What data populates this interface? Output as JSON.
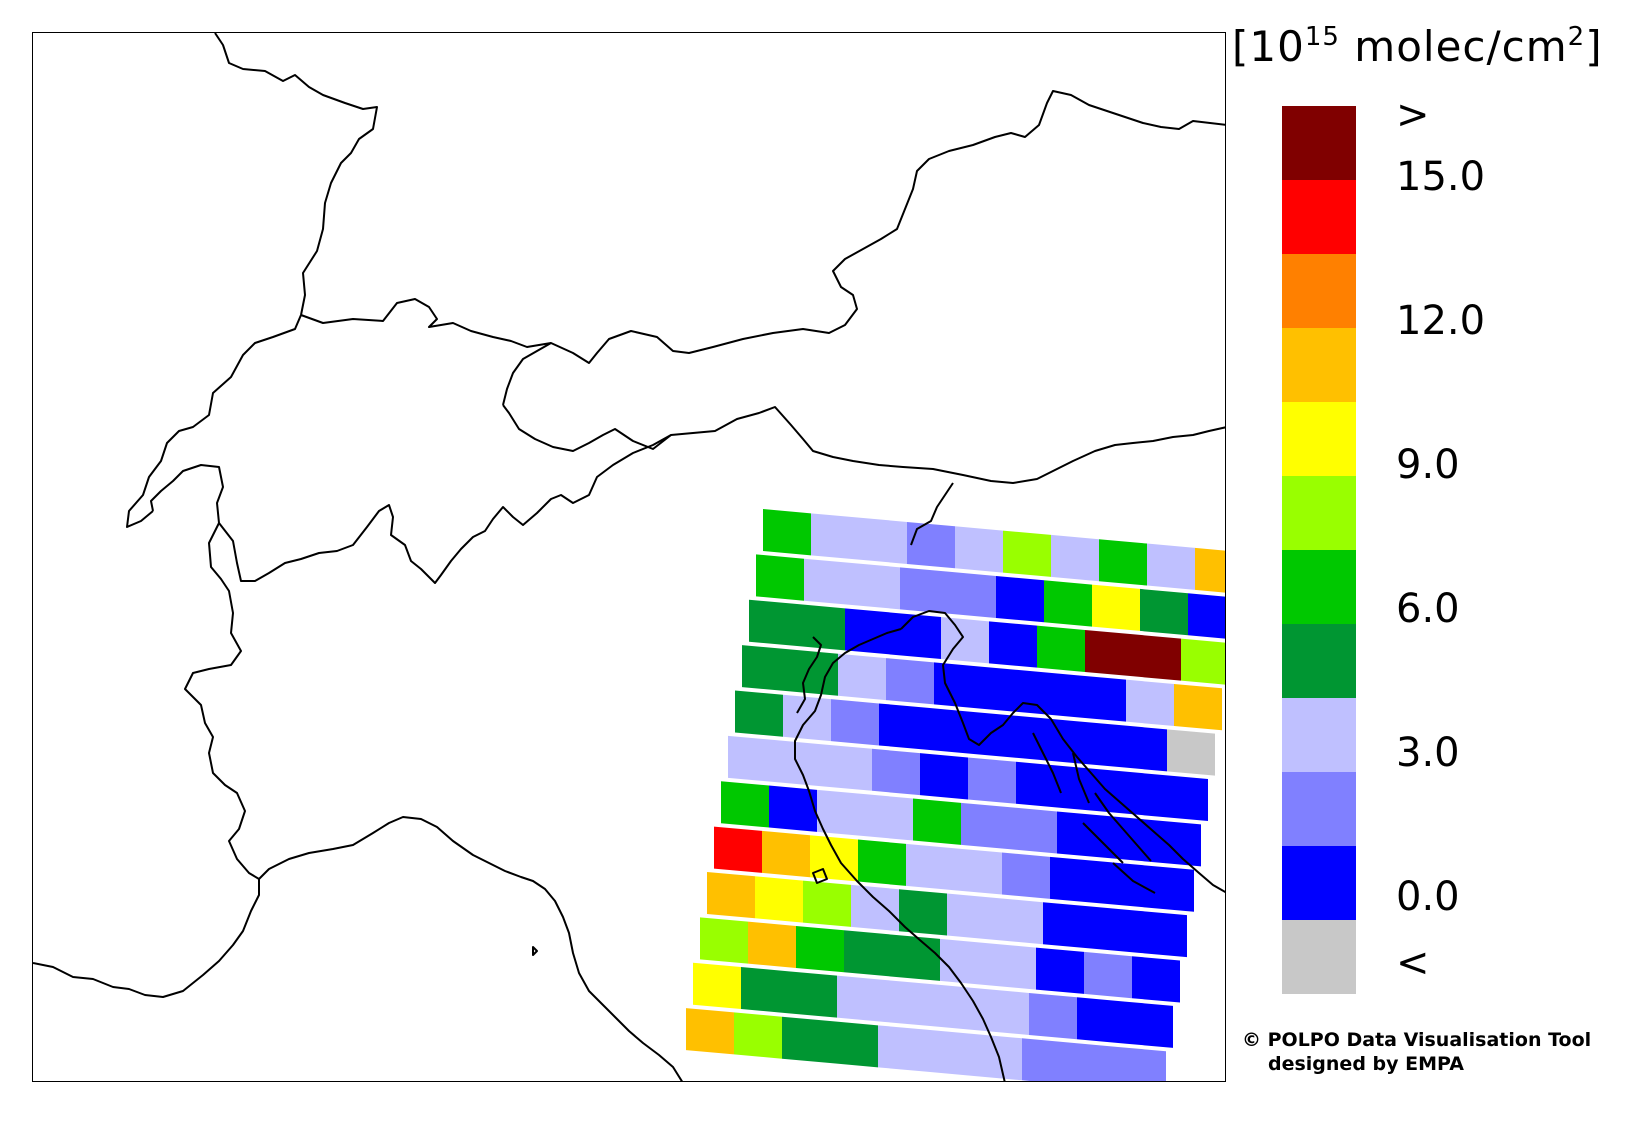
{
  "map": {
    "title": "",
    "border_color": "#000000",
    "orbit_rows": [
      [
        "#00c800",
        "#bfc0ff",
        "#bfc0ff",
        "#8080ff",
        "#bfc0ff",
        "#99ff00",
        "#bfc0ff",
        "#00c800",
        "#bfc0ff",
        "#ffc000"
      ],
      [
        "#00c800",
        "#bfc0ff",
        "#bfc0ff",
        "#8080ff",
        "#8080ff",
        "#0000ff",
        "#00c800",
        "#ffff00",
        "#009632",
        "#0000ff"
      ],
      [
        "#009632",
        "#009632",
        "#0000ff",
        "#0000ff",
        "#bfc0ff",
        "#0000ff",
        "#00c800",
        "#800000",
        "#800000",
        "#99ff00"
      ],
      [
        "#009632",
        "#009632",
        "#bfc0ff",
        "#8080ff",
        "#0000ff",
        "#0000ff",
        "#0000ff",
        "#0000ff",
        "#bfc0ff",
        "#ffc000"
      ],
      [
        "#009632",
        "#bfc0ff",
        "#8080ff",
        "#0000ff",
        "#0000ff",
        "#0000ff",
        "#0000ff",
        "#0000ff",
        "#0000ff",
        "#c8c8c8"
      ],
      [
        "#bfc0ff",
        "#bfc0ff",
        "#bfc0ff",
        "#8080ff",
        "#0000ff",
        "#8080ff",
        "#0000ff",
        "#0000ff",
        "#0000ff",
        "#0000ff"
      ],
      [
        "#00c800",
        "#0000ff",
        "#bfc0ff",
        "#bfc0ff",
        "#00c800",
        "#8080ff",
        "#8080ff",
        "#0000ff",
        "#0000ff",
        "#0000ff"
      ],
      [
        "#ff0000",
        "#ffc000",
        "#ffff00",
        "#00c800",
        "#bfc0ff",
        "#bfc0ff",
        "#8080ff",
        "#0000ff",
        "#0000ff",
        "#0000ff"
      ],
      [
        "#ffc000",
        "#ffff00",
        "#99ff00",
        "#bfc0ff",
        "#009632",
        "#bfc0ff",
        "#bfc0ff",
        "#0000ff",
        "#0000ff",
        "#0000ff"
      ],
      [
        "#99ff00",
        "#ffc000",
        "#00c800",
        "#009632",
        "#009632",
        "#bfc0ff",
        "#bfc0ff",
        "#0000ff",
        "#8080ff",
        "#0000ff"
      ],
      [
        "#ffff00",
        "#009632",
        "#009632",
        "#bfc0ff",
        "#bfc0ff",
        "#bfc0ff",
        "#bfc0ff",
        "#8080ff",
        "#0000ff",
        "#0000ff"
      ],
      [
        "#ffc000",
        "#99ff00",
        "#009632",
        "#009632",
        "#bfc0ff",
        "#bfc0ff",
        "#bfc0ff",
        "#8080ff",
        "#8080ff",
        "#8080ff"
      ]
    ]
  },
  "legend": {
    "units_prefix": "[10",
    "units_exp": "15",
    "units_suffix": " molec/cm",
    "units_sq": "2",
    "units_close": "]",
    "colors": [
      "#800000",
      "#ff0000",
      "#ff8000",
      "#ffc000",
      "#ffff00",
      "#99ff00",
      "#00c800",
      "#009632",
      "#bfc0ff",
      "#8080ff",
      "#0000ff",
      "#c8c8c8"
    ],
    "labels": [
      ">",
      "15.0",
      "12.0",
      "9.0",
      "6.0",
      "3.0",
      "0.0",
      "<"
    ]
  },
  "credit": {
    "line1": "© POLPO Data Visualisation Tool",
    "line2": "designed by EMPA"
  }
}
